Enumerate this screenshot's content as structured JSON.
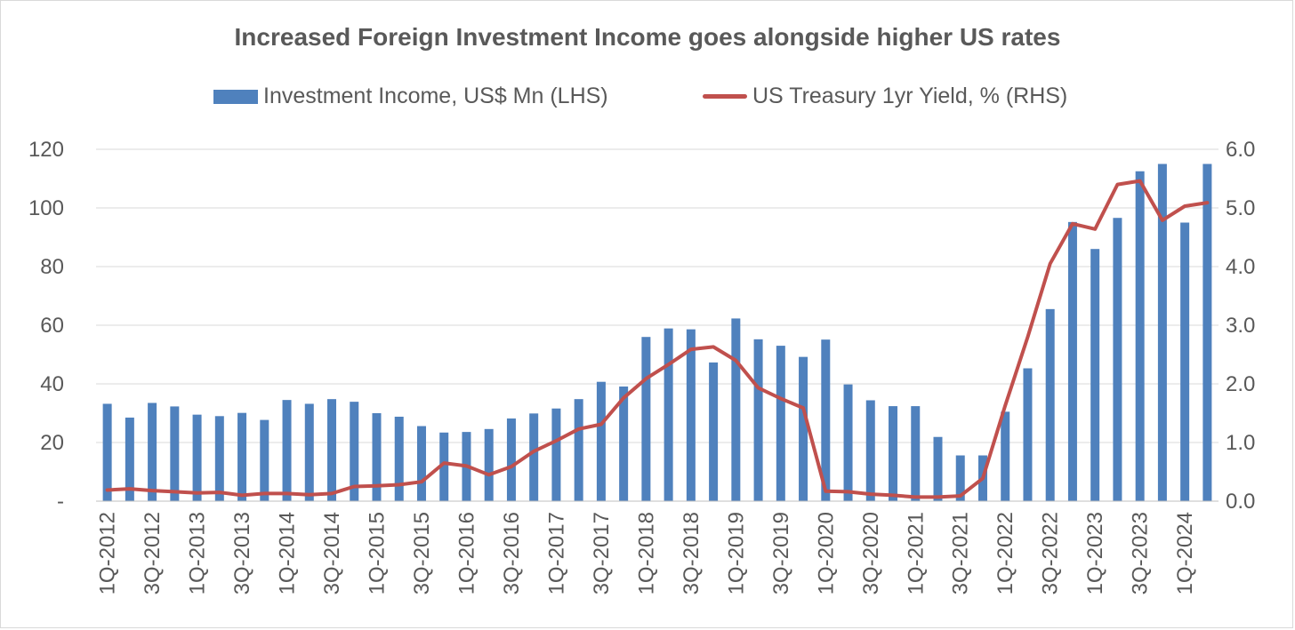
{
  "chart_data": {
    "type": "bar",
    "title": "Increased Foreign Investment Income goes alongside higher US rates",
    "categories": [
      "1Q-2012",
      "2Q-2012",
      "3Q-2012",
      "4Q-2012",
      "1Q-2013",
      "2Q-2013",
      "3Q-2013",
      "4Q-2013",
      "1Q-2014",
      "2Q-2014",
      "3Q-2014",
      "4Q-2014",
      "1Q-2015",
      "2Q-2015",
      "3Q-2015",
      "4Q-2015",
      "1Q-2016",
      "2Q-2016",
      "3Q-2016",
      "4Q-2016",
      "1Q-2017",
      "2Q-2017",
      "3Q-2017",
      "4Q-2017",
      "1Q-2018",
      "2Q-2018",
      "3Q-2018",
      "4Q-2018",
      "1Q-2019",
      "2Q-2019",
      "3Q-2019",
      "4Q-2019",
      "1Q-2020",
      "2Q-2020",
      "3Q-2020",
      "4Q-2020",
      "1Q-2021",
      "2Q-2021",
      "3Q-2021",
      "4Q-2021",
      "1Q-2022",
      "2Q-2022",
      "3Q-2022",
      "4Q-2022",
      "1Q-2023",
      "2Q-2023",
      "3Q-2023",
      "4Q-2023",
      "1Q-2024",
      "2Q-2024"
    ],
    "x_tick_labels": [
      "1Q-2012",
      "3Q-2012",
      "1Q-2013",
      "3Q-2013",
      "1Q-2014",
      "3Q-2014",
      "1Q-2015",
      "3Q-2015",
      "1Q-2016",
      "3Q-2016",
      "1Q-2017",
      "3Q-2017",
      "1Q-2018",
      "3Q-2018",
      "1Q-2019",
      "3Q-2019",
      "1Q-2020",
      "3Q-2020",
      "1Q-2021",
      "3Q-2021",
      "1Q-2022",
      "3Q-2022",
      "1Q-2023",
      "3Q-2023",
      "1Q-2024"
    ],
    "series": [
      {
        "name": "Investment Income, US$ Mn (LHS)",
        "type": "bar",
        "axis": "left",
        "color": "#4f81bd",
        "values": [
          33.2,
          28.5,
          33.5,
          32.3,
          29.5,
          29.0,
          30.1,
          27.7,
          34.5,
          33.2,
          34.8,
          33.9,
          30.0,
          28.8,
          25.6,
          23.4,
          23.6,
          24.6,
          28.2,
          29.9,
          31.6,
          34.8,
          40.7,
          39.1,
          56.0,
          58.9,
          58.6,
          47.3,
          62.3,
          55.2,
          53.0,
          49.2,
          55.1,
          39.8,
          34.4,
          32.4,
          32.4,
          21.9,
          15.6,
          15.6,
          30.5,
          45.3,
          65.5,
          95.2,
          86.0,
          96.6,
          112.5,
          115.0,
          95.0,
          115.0
        ]
      },
      {
        "name": "US Treasury 1yr Yield, % (RHS)",
        "type": "line",
        "axis": "right",
        "color": "#c0504d",
        "values": [
          0.19,
          0.21,
          0.18,
          0.16,
          0.14,
          0.15,
          0.1,
          0.13,
          0.13,
          0.11,
          0.13,
          0.25,
          0.26,
          0.28,
          0.33,
          0.65,
          0.6,
          0.45,
          0.59,
          0.85,
          1.03,
          1.23,
          1.31,
          1.76,
          2.09,
          2.33,
          2.59,
          2.63,
          2.4,
          1.93,
          1.75,
          1.59,
          0.17,
          0.16,
          0.12,
          0.1,
          0.07,
          0.07,
          0.09,
          0.39,
          1.63,
          2.8,
          4.05,
          4.73,
          4.64,
          5.4,
          5.46,
          4.79,
          5.03,
          5.09
        ]
      }
    ],
    "y_left": {
      "ylim": [
        0,
        120
      ],
      "ticks": [
        0,
        20,
        40,
        60,
        80,
        100,
        120
      ],
      "tick_labels": [
        "-",
        "20",
        "40",
        "60",
        "80",
        "100",
        "120"
      ]
    },
    "y_right": {
      "ylim": [
        0,
        6.0
      ],
      "ticks": [
        0,
        1,
        2,
        3,
        4,
        5,
        6
      ],
      "tick_labels": [
        "0.0",
        "1.0",
        "2.0",
        "3.0",
        "4.0",
        "5.0",
        "6.0"
      ]
    },
    "grid": "horizontal",
    "legend_position": "top"
  }
}
